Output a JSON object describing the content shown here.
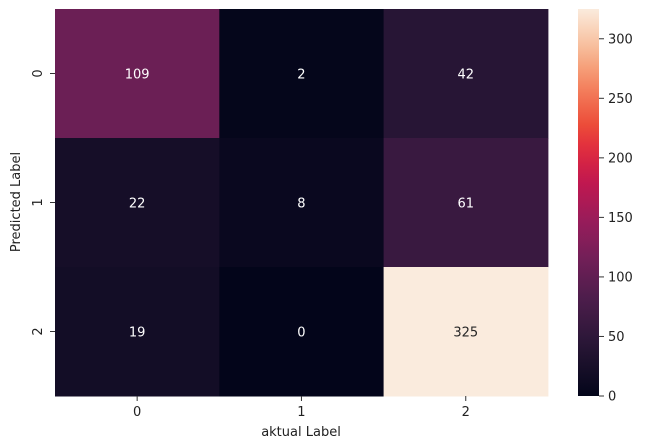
{
  "chart_data": {
    "type": "heatmap",
    "title": "",
    "xlabel": "aktual Label",
    "ylabel": "Predicted Label",
    "x_categories": [
      "0",
      "1",
      "2"
    ],
    "y_categories": [
      "0",
      "1",
      "2"
    ],
    "values": [
      [
        109,
        2,
        42
      ],
      [
        22,
        8,
        61
      ],
      [
        19,
        0,
        325
      ]
    ],
    "value_range": [
      0,
      325
    ],
    "colormap": "rocket",
    "colorbar": {
      "ticks": [
        0,
        50,
        100,
        150,
        200,
        250,
        300
      ],
      "tick_labels": [
        "0",
        "50",
        "100",
        "150",
        "200",
        "250",
        "300"
      ]
    },
    "grid": false,
    "legend": "colorbar-right"
  }
}
